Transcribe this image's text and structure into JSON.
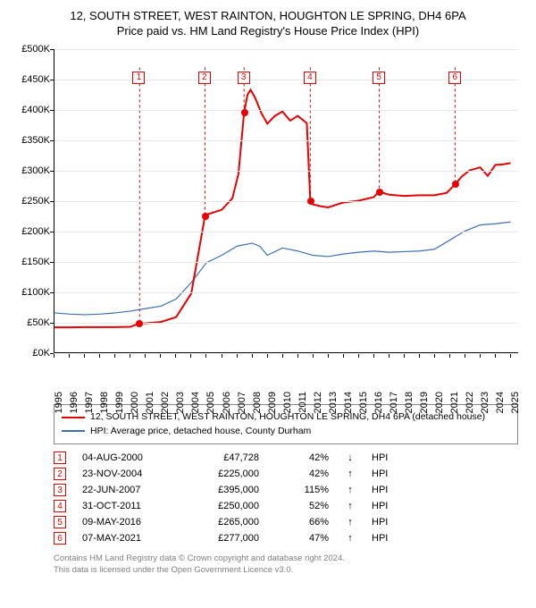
{
  "title_line1": "12, SOUTH STREET, WEST RAINTON, HOUGHTON LE SPRING, DH4 6PA",
  "title_line2": "Price paid vs. HM Land Registry's House Price Index (HPI)",
  "chart": {
    "type": "line",
    "ylim": [
      0,
      500000
    ],
    "ytick_step": 50000,
    "yticks": [
      "£0K",
      "£50K",
      "£100K",
      "£150K",
      "£200K",
      "£250K",
      "£300K",
      "£350K",
      "£400K",
      "£450K",
      "£500K"
    ],
    "xlim": [
      1995,
      2025.5
    ],
    "xticks": [
      1995,
      1996,
      1997,
      1998,
      1999,
      2000,
      2001,
      2002,
      2003,
      2004,
      2005,
      2006,
      2007,
      2008,
      2009,
      2010,
      2011,
      2012,
      2013,
      2014,
      2015,
      2016,
      2017,
      2018,
      2019,
      2020,
      2021,
      2022,
      2023,
      2024,
      2025
    ],
    "grid_color": "#e8e8e8",
    "background_color": "#ffffff",
    "property_color": "#e80000",
    "hpi_color": "#3b6fb6",
    "marker_line_color": "#e80000",
    "title_fontsize": 13,
    "axis_fontsize": 11,
    "line_width_property": 2,
    "line_width_hpi": 1.2,
    "property_series": [
      [
        1995,
        41000
      ],
      [
        1996,
        41000
      ],
      [
        1997,
        41500
      ],
      [
        1998,
        41500
      ],
      [
        1999,
        41500
      ],
      [
        2000,
        42000
      ],
      [
        2000.6,
        47728
      ],
      [
        2001,
        48000
      ],
      [
        2002,
        50000
      ],
      [
        2003,
        58000
      ],
      [
        2004,
        97000
      ],
      [
        2004.9,
        225000
      ],
      [
        2005,
        227000
      ],
      [
        2006,
        235000
      ],
      [
        2006.7,
        254000
      ],
      [
        2007.1,
        294000
      ],
      [
        2007.47,
        395000
      ],
      [
        2007.7,
        425000
      ],
      [
        2007.9,
        433000
      ],
      [
        2008.2,
        420000
      ],
      [
        2008.6,
        395000
      ],
      [
        2009,
        377000
      ],
      [
        2009.5,
        390000
      ],
      [
        2010,
        397000
      ],
      [
        2010.5,
        382000
      ],
      [
        2011,
        390000
      ],
      [
        2011.6,
        378000
      ],
      [
        2011.83,
        250000
      ],
      [
        2012,
        244000
      ],
      [
        2012.5,
        241000
      ],
      [
        2013,
        239000
      ],
      [
        2014,
        247000
      ],
      [
        2015,
        250000
      ],
      [
        2016,
        256000
      ],
      [
        2016.36,
        265000
      ],
      [
        2017,
        260000
      ],
      [
        2018,
        258000
      ],
      [
        2019,
        259000
      ],
      [
        2020,
        259000
      ],
      [
        2020.8,
        263000
      ],
      [
        2021.35,
        277000
      ],
      [
        2021.8,
        290000
      ],
      [
        2022.3,
        300000
      ],
      [
        2023,
        305000
      ],
      [
        2023.5,
        291000
      ],
      [
        2024,
        309000
      ],
      [
        2024.5,
        310000
      ],
      [
        2025,
        312000
      ]
    ],
    "hpi_series": [
      [
        1995,
        65000
      ],
      [
        1996,
        63000
      ],
      [
        1997,
        62000
      ],
      [
        1998,
        63000
      ],
      [
        1999,
        65000
      ],
      [
        2000,
        68000
      ],
      [
        2001,
        72000
      ],
      [
        2002,
        76000
      ],
      [
        2003,
        88000
      ],
      [
        2004,
        115000
      ],
      [
        2005,
        148000
      ],
      [
        2006,
        160000
      ],
      [
        2007,
        175000
      ],
      [
        2008,
        180000
      ],
      [
        2008.5,
        175000
      ],
      [
        2009,
        160000
      ],
      [
        2010,
        172000
      ],
      [
        2011,
        167000
      ],
      [
        2012,
        160000
      ],
      [
        2013,
        158000
      ],
      [
        2014,
        162000
      ],
      [
        2015,
        165000
      ],
      [
        2016,
        167000
      ],
      [
        2017,
        165000
      ],
      [
        2018,
        166000
      ],
      [
        2019,
        167000
      ],
      [
        2020,
        170000
      ],
      [
        2021,
        185000
      ],
      [
        2022,
        200000
      ],
      [
        2023,
        210000
      ],
      [
        2024,
        212000
      ],
      [
        2025,
        215000
      ]
    ],
    "markers": [
      {
        "n": 1,
        "x": 2000.6,
        "y": 47728,
        "label_y": 440000
      },
      {
        "n": 2,
        "x": 2004.9,
        "y": 225000,
        "label_y": 440000
      },
      {
        "n": 3,
        "x": 2007.47,
        "y": 395000,
        "label_y": 440000
      },
      {
        "n": 4,
        "x": 2011.83,
        "y": 250000,
        "label_y": 440000
      },
      {
        "n": 5,
        "x": 2016.36,
        "y": 265000,
        "label_y": 440000
      },
      {
        "n": 6,
        "x": 2021.35,
        "y": 277000,
        "label_y": 440000
      }
    ]
  },
  "legend": {
    "items": [
      {
        "color": "#e80000",
        "label": "12, SOUTH STREET, WEST RAINTON, HOUGHTON LE SPRING, DH4 6PA (detached house)"
      },
      {
        "color": "#3b6fb6",
        "label": "HPI: Average price, detached house, County Durham"
      }
    ]
  },
  "table": {
    "box_color": "#e80000",
    "rows": [
      {
        "n": "1",
        "date": "04-AUG-2000",
        "price": "£47,728",
        "delta": "42%",
        "arrow": "↓",
        "rel": "HPI"
      },
      {
        "n": "2",
        "date": "23-NOV-2004",
        "price": "£225,000",
        "delta": "42%",
        "arrow": "↑",
        "rel": "HPI"
      },
      {
        "n": "3",
        "date": "22-JUN-2007",
        "price": "£395,000",
        "delta": "115%",
        "arrow": "↑",
        "rel": "HPI"
      },
      {
        "n": "4",
        "date": "31-OCT-2011",
        "price": "£250,000",
        "delta": "52%",
        "arrow": "↑",
        "rel": "HPI"
      },
      {
        "n": "5",
        "date": "09-MAY-2016",
        "price": "£265,000",
        "delta": "66%",
        "arrow": "↑",
        "rel": "HPI"
      },
      {
        "n": "6",
        "date": "07-MAY-2021",
        "price": "£277,000",
        "delta": "47%",
        "arrow": "↑",
        "rel": "HPI"
      }
    ]
  },
  "footnote_line1": "Contains HM Land Registry data © Crown copyright and database right 2024.",
  "footnote_line2": "This data is licensed under the Open Government Licence v3.0."
}
